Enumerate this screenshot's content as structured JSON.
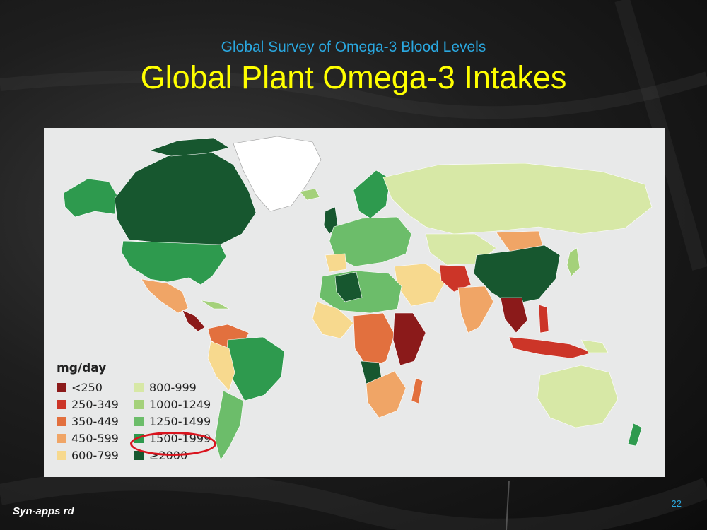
{
  "slide": {
    "subtitle": "Global Survey of Omega-3 Blood Levels",
    "title": "Global Plant Omega-3 Intakes",
    "footer": "Syn-apps rd",
    "page_number": "22"
  },
  "legend": {
    "title": "mg/day",
    "items": [
      {
        "label": "<250",
        "color": "#8b1a1a"
      },
      {
        "label": "800-999",
        "color": "#d7e8a6"
      },
      {
        "label": "250-349",
        "color": "#cc3528"
      },
      {
        "label": "1000-1249",
        "color": "#a4d17a"
      },
      {
        "label": "350-449",
        "color": "#e2703e"
      },
      {
        "label": "1250-1499",
        "color": "#6cbd6a"
      },
      {
        "label": "450-599",
        "color": "#f0a566"
      },
      {
        "label": "1500-1999",
        "color": "#2e9a4e"
      },
      {
        "label": "600-799",
        "color": "#f7d98e"
      },
      {
        "label": "≥2000",
        "color": "#17572f"
      }
    ],
    "highlighted": "1500-1999"
  },
  "colors": {
    "ocean": "#e8e9e9",
    "no_data": "#ffffff",
    "highlight_circle": "#d9141e"
  }
}
